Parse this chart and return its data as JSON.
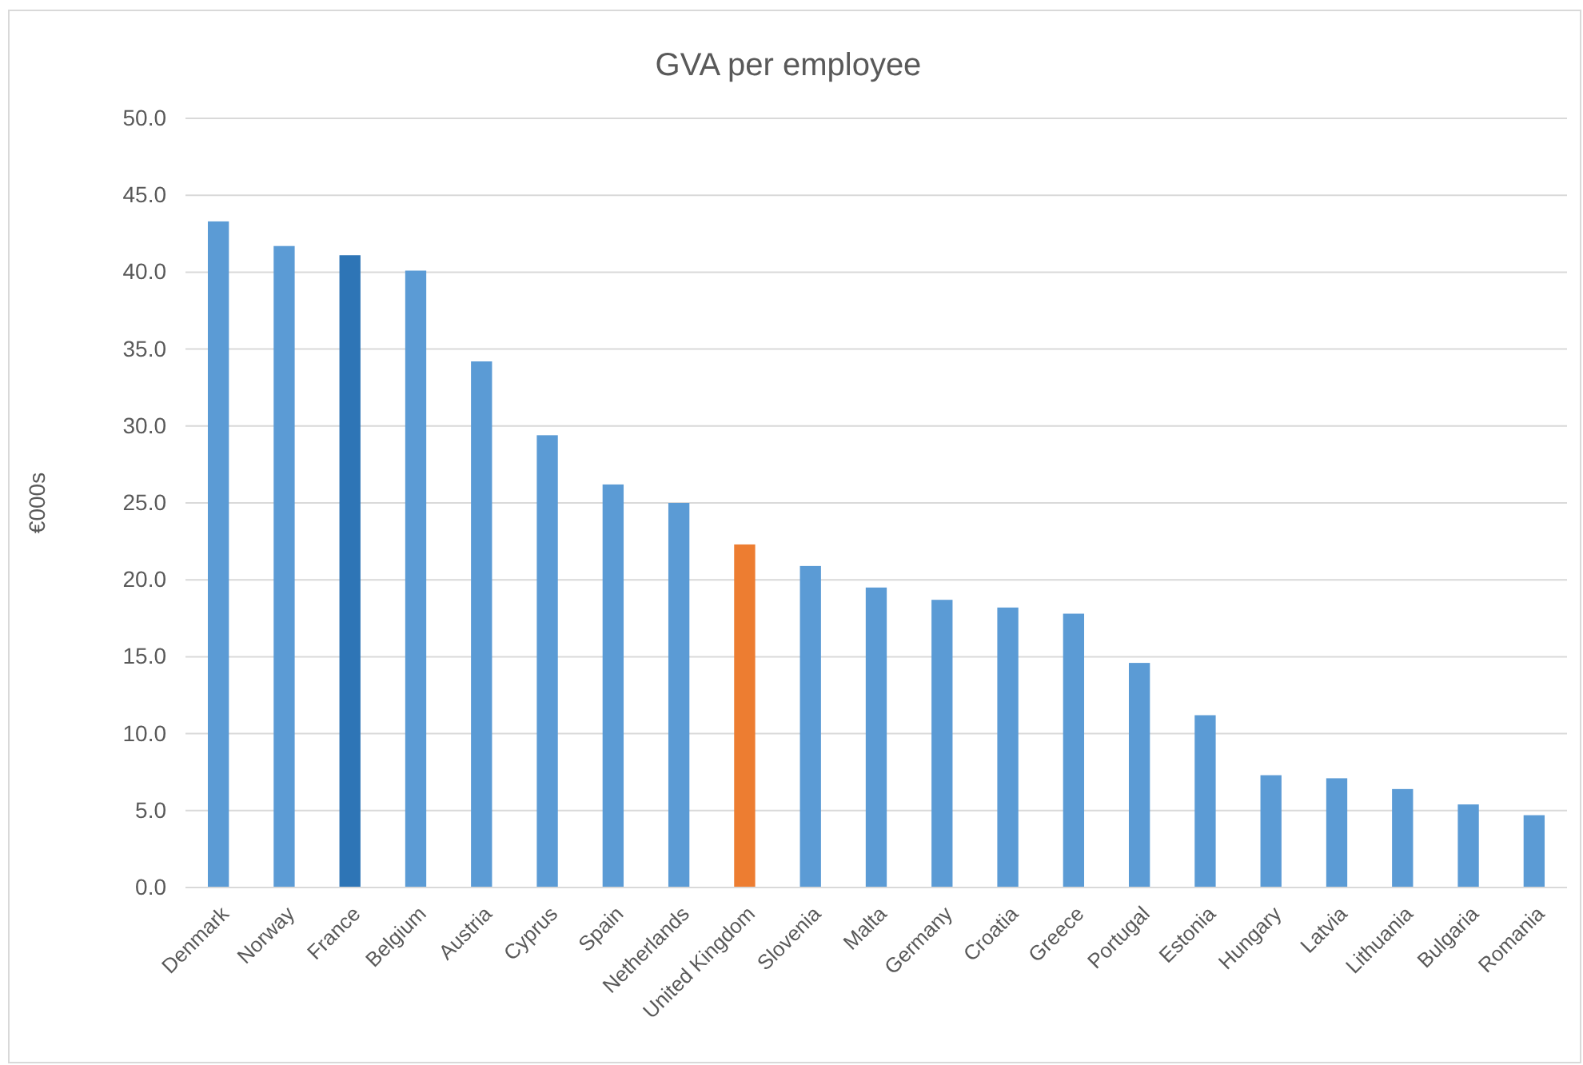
{
  "chart_data": {
    "type": "bar",
    "title": "GVA per employee",
    "ylabel": "€000s",
    "categories": [
      "Denmark",
      "Norway",
      "France",
      "Belgium",
      "Austria",
      "Cyprus",
      "Spain",
      "Netherlands",
      "United Kingdom",
      "Slovenia",
      "Malta",
      "Germany",
      "Croatia",
      "Greece",
      "Portugal",
      "Estonia",
      "Hungary",
      "Latvia",
      "Lithuania",
      "Bulgaria",
      "Romania"
    ],
    "values": [
      43.3,
      41.7,
      41.1,
      40.1,
      34.2,
      29.4,
      26.2,
      25.0,
      22.3,
      20.9,
      19.5,
      18.7,
      18.2,
      17.8,
      14.6,
      11.2,
      7.3,
      7.1,
      6.4,
      5.4,
      4.7
    ],
    "colors": [
      "#5b9bd5",
      "#5b9bd5",
      "#2e75b6",
      "#5b9bd5",
      "#5b9bd5",
      "#5b9bd5",
      "#5b9bd5",
      "#5b9bd5",
      "#ed7d31",
      "#5b9bd5",
      "#5b9bd5",
      "#5b9bd5",
      "#5b9bd5",
      "#5b9bd5",
      "#5b9bd5",
      "#5b9bd5",
      "#5b9bd5",
      "#5b9bd5",
      "#5b9bd5",
      "#5b9bd5",
      "#5b9bd5"
    ],
    "ylim": [
      0,
      50
    ],
    "yticks": [
      {
        "value": 0,
        "label": "0.0"
      },
      {
        "value": 5,
        "label": "5.0"
      },
      {
        "value": 10,
        "label": "10.0"
      },
      {
        "value": 15,
        "label": "15.0"
      },
      {
        "value": 20,
        "label": "20.0"
      },
      {
        "value": 25,
        "label": "25.0"
      },
      {
        "value": 30,
        "label": "30.0"
      },
      {
        "value": 35,
        "label": "35.0"
      },
      {
        "value": 40,
        "label": "40.0"
      },
      {
        "value": 45,
        "label": "45.0"
      },
      {
        "value": 50,
        "label": "50.0"
      }
    ],
    "grid": "y"
  }
}
